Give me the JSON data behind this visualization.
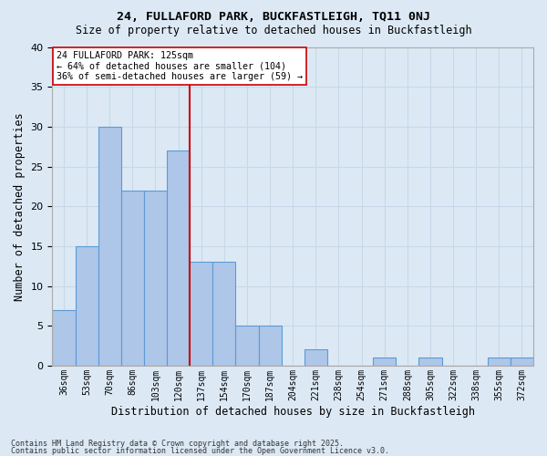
{
  "title1": "24, FULLAFORD PARK, BUCKFASTLEIGH, TQ11 0NJ",
  "title2": "Size of property relative to detached houses in Buckfastleigh",
  "xlabel": "Distribution of detached houses by size in Buckfastleigh",
  "ylabel": "Number of detached properties",
  "bin_labels": [
    "36sqm",
    "53sqm",
    "70sqm",
    "86sqm",
    "103sqm",
    "120sqm",
    "137sqm",
    "154sqm",
    "170sqm",
    "187sqm",
    "204sqm",
    "221sqm",
    "238sqm",
    "254sqm",
    "271sqm",
    "288sqm",
    "305sqm",
    "322sqm",
    "338sqm",
    "355sqm",
    "372sqm"
  ],
  "counts": [
    7,
    15,
    30,
    22,
    22,
    27,
    13,
    13,
    5,
    5,
    0,
    2,
    0,
    0,
    1,
    0,
    1,
    0,
    0,
    1,
    1
  ],
  "bar_color": "#aec6e8",
  "bar_edge_color": "#5b9bd5",
  "vline_index": 6,
  "vline_color": "#cc0000",
  "annotation_text": "24 FULLAFORD PARK: 125sqm\n← 64% of detached houses are smaller (104)\n36% of semi-detached houses are larger (59) →",
  "annotation_box_color": "#ffffff",
  "annotation_box_edge": "#cc0000",
  "grid_color": "#c8d8e8",
  "background_color": "#dce9f5",
  "footer1": "Contains HM Land Registry data © Crown copyright and database right 2025.",
  "footer2": "Contains public sector information licensed under the Open Government Licence v3.0.",
  "ylim": [
    0,
    40
  ],
  "yticks": [
    0,
    5,
    10,
    15,
    20,
    25,
    30,
    35,
    40
  ]
}
